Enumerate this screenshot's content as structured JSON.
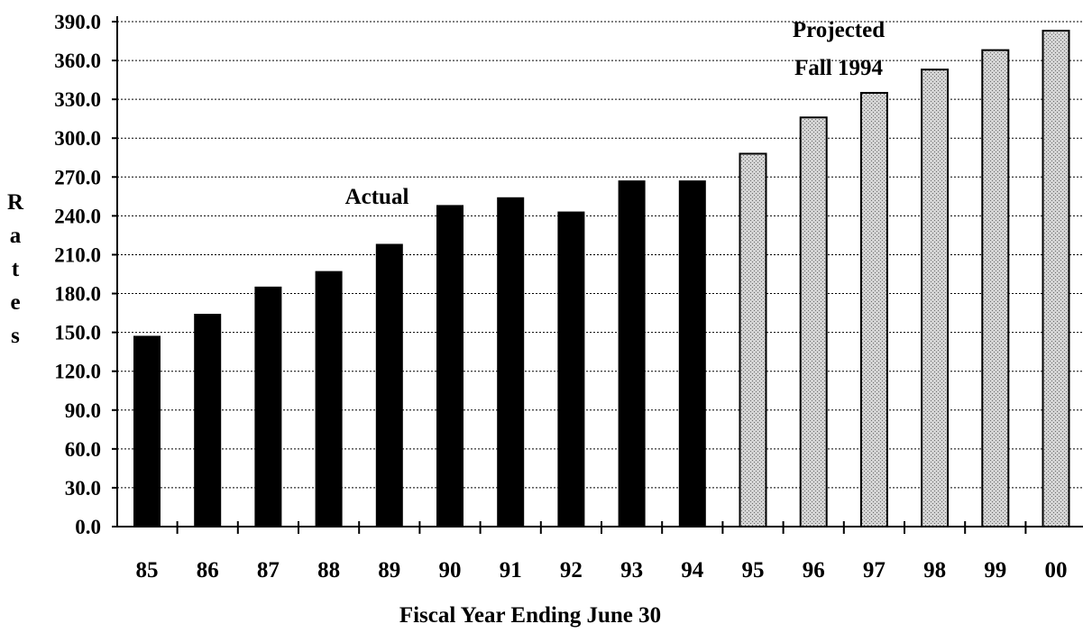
{
  "chart_data": {
    "type": "bar",
    "categories": [
      "85",
      "86",
      "87",
      "88",
      "89",
      "90",
      "91",
      "92",
      "93",
      "94",
      "95",
      "96",
      "97",
      "98",
      "99",
      "00"
    ],
    "series": [
      {
        "name": "Actual",
        "values": [
          147,
          164,
          185,
          197,
          218,
          248,
          254,
          243,
          267,
          267,
          null,
          null,
          null,
          null,
          null,
          null
        ],
        "color": "#000000",
        "style": "solid"
      },
      {
        "name": "Projected Fall 1994",
        "values": [
          null,
          null,
          null,
          null,
          null,
          null,
          null,
          null,
          null,
          null,
          288,
          316,
          335,
          353,
          368,
          383
        ],
        "color": "#c8c8c8",
        "style": "stippled"
      }
    ],
    "xlabel": "Fiscal Year Ending June 30",
    "ylabel": "Rates",
    "ylim": [
      0,
      390
    ],
    "yticks": [
      "0.0",
      "30.0",
      "60.0",
      "90.0",
      "120.0",
      "150.0",
      "180.0",
      "210.0",
      "240.0",
      "270.0",
      "300.0",
      "330.0",
      "360.0",
      "390.0"
    ],
    "grid": true,
    "annotations": {
      "actual": "Actual",
      "projected_line1": "Projected",
      "projected_line2": "Fall 1994"
    }
  }
}
